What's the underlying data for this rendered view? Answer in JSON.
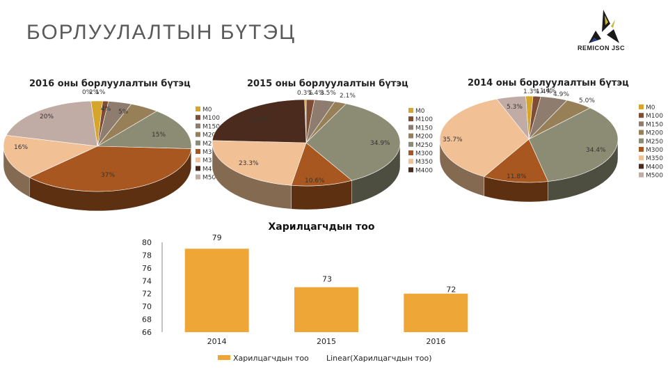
{
  "slide": {
    "title": "БОРЛУУЛАЛТЫН БҮТЭЦ",
    "logo_text": "REMICON JSC"
  },
  "colors": {
    "M0": "#d5a52c",
    "M100": "#7e4d34",
    "M150": "#8e7d6e",
    "M200": "#978058",
    "M250": "#8c8c74",
    "M300": "#a7571f",
    "M350": "#f1c095",
    "M400": "#4a2b1e",
    "M500": "#c1aba5",
    "bar": "#eea737"
  },
  "chart_data": [
    {
      "type": "pie",
      "title": "2016 оны борлуулалтын бүтэц",
      "legend_position": "right",
      "legend": [
        "M0",
        "M100",
        "M150",
        "M200",
        "M250",
        "M300",
        "M350",
        "M400",
        "M500"
      ],
      "slices": [
        {
          "category": "M0",
          "value": 2,
          "label": "2%"
        },
        {
          "category": "M100",
          "value": 1,
          "label": "1%"
        },
        {
          "category": "M150",
          "value": 4,
          "label": "4%"
        },
        {
          "category": "M200",
          "value": 5,
          "label": "5%"
        },
        {
          "category": "M250",
          "value": 15,
          "label": "15%"
        },
        {
          "category": "M300",
          "value": 37,
          "label": "37%"
        },
        {
          "category": "M350",
          "value": 16,
          "label": "16%"
        },
        {
          "category": "M500",
          "value": 20,
          "label": "20%"
        }
      ],
      "overlap_label": "0%"
    },
    {
      "type": "pie",
      "title": "2015 оны борлуулалтын бүтэц",
      "legend_position": "right",
      "legend": [
        "M0",
        "M100",
        "M150",
        "M200",
        "M250",
        "M300",
        "M350",
        "M400"
      ],
      "slices": [
        {
          "category": "M0",
          "value": 0.3,
          "label": "0.3%"
        },
        {
          "category": "M100",
          "value": 1.4,
          "label": "1.4%"
        },
        {
          "category": "M150",
          "value": 3.5,
          "label": "3.5%"
        },
        {
          "category": "M200",
          "value": 2.1,
          "label": "2.1%"
        },
        {
          "category": "M250",
          "value": 34.9,
          "label": "34.9%"
        },
        {
          "category": "M300",
          "value": 10.6,
          "label": "10.6%"
        },
        {
          "category": "M350",
          "value": 23.3,
          "label": "23.3%"
        },
        {
          "category": "M400",
          "value": 23.9,
          "label": "23.9%"
        }
      ]
    },
    {
      "type": "pie",
      "title": "2014 оны борлуулалтын бүтэц",
      "legend_position": "right",
      "legend": [
        "M0",
        "M100",
        "M150",
        "M200",
        "M250",
        "M300",
        "M350",
        "M400",
        "M500"
      ],
      "slices": [
        {
          "category": "M0",
          "value": 1.3,
          "label": "1.3%"
        },
        {
          "category": "M100",
          "value": 1.4,
          "label": "1.4%"
        },
        {
          "category": "M150",
          "value": 4.9,
          "label": "4.9%"
        },
        {
          "category": "M200",
          "value": 5.0,
          "label": "5.0%"
        },
        {
          "category": "M250",
          "value": 34.4,
          "label": "34.4%"
        },
        {
          "category": "M300",
          "value": 11.8,
          "label": "11.8%"
        },
        {
          "category": "M350",
          "value": 35.7,
          "label": "35.7%"
        },
        {
          "category": "M500",
          "value": 5.3,
          "label": "5.3%"
        }
      ],
      "overlap_label": "1.4%"
    },
    {
      "type": "bar",
      "title": "Харилцагчдын тоо",
      "categories": [
        "2014",
        "2015",
        "2016"
      ],
      "series": [
        {
          "name": "Харилцагчдын тоо",
          "values": [
            79,
            73,
            72
          ]
        }
      ],
      "data_labels": [
        "79",
        "73",
        "72"
      ],
      "trendline": "Linear(Харилцагчдын тоо)",
      "ylim": [
        66,
        80
      ],
      "yticks": [
        66,
        68,
        70,
        72,
        74,
        76,
        78,
        80
      ],
      "grid": false,
      "legend_position": "bottom"
    }
  ]
}
